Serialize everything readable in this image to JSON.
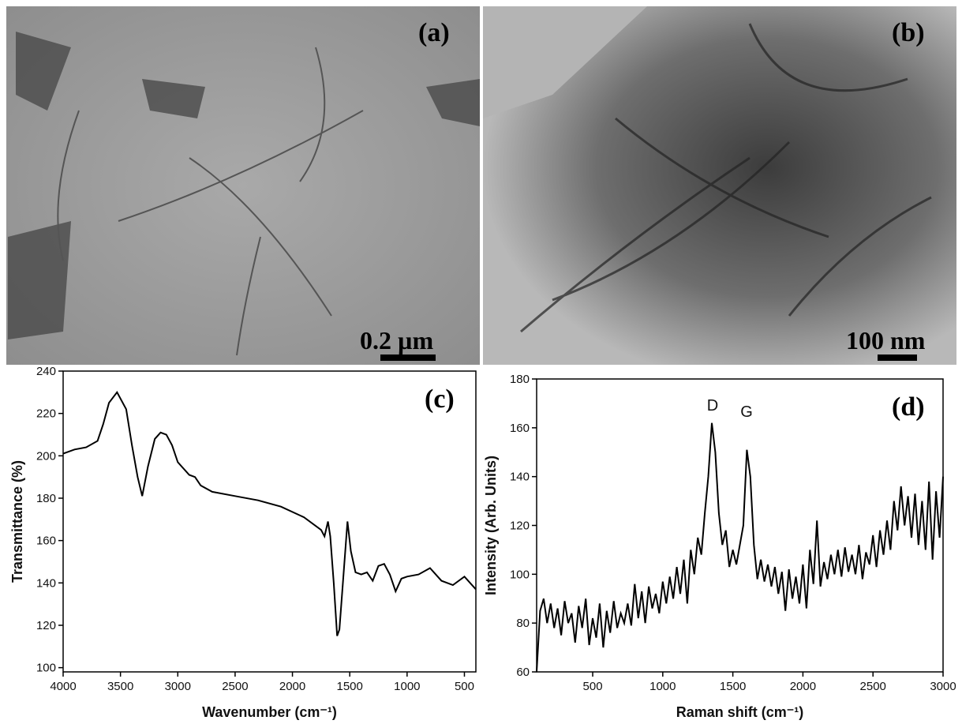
{
  "images": [
    {
      "label": "(a)",
      "scale_bar": "0.2 µm"
    },
    {
      "label": "(b)",
      "scale_bar": "100 nm"
    }
  ],
  "chart_data": [
    {
      "type": "line",
      "label": "(c)",
      "x_label": "Wavenumber (cm⁻¹)",
      "y_label": "Transmittance (%)",
      "color": "#000000",
      "x": [
        4000,
        3900,
        3800,
        3700,
        3650,
        3600,
        3530,
        3450,
        3400,
        3350,
        3310,
        3260,
        3200,
        3150,
        3100,
        3050,
        3000,
        2900,
        2850,
        2800,
        2700,
        2500,
        2300,
        2100,
        1900,
        1750,
        1720,
        1690,
        1670,
        1640,
        1610,
        1590,
        1560,
        1520,
        1490,
        1450,
        1400,
        1350,
        1300,
        1250,
        1200,
        1150,
        1100,
        1050,
        1000,
        900,
        800,
        700,
        600,
        500,
        400
      ],
      "values": [
        201,
        203,
        204,
        207,
        215,
        225,
        230,
        222,
        205,
        190,
        181,
        195,
        208,
        211,
        210,
        205,
        197,
        191,
        190,
        186,
        183,
        181,
        179,
        176,
        171,
        165,
        162,
        169,
        162,
        140,
        115,
        118,
        140,
        169,
        155,
        145,
        144,
        145,
        141,
        148,
        149,
        144,
        136,
        142,
        143,
        144,
        147,
        141,
        139,
        143,
        137
      ],
      "xlim": [
        4000,
        400
      ],
      "xticks": [
        4000,
        3500,
        3000,
        2500,
        2000,
        1500,
        1000,
        500
      ],
      "ylim": [
        98,
        240
      ],
      "yticks": [
        100,
        120,
        140,
        160,
        180,
        200,
        220,
        240
      ]
    },
    {
      "type": "line",
      "label": "(d)",
      "x_label": "Raman shift (cm⁻¹)",
      "y_label": "Intensity (Arb. Units)",
      "color": "#000000",
      "annotations": [
        "D",
        "G"
      ],
      "x": [
        100,
        125,
        150,
        175,
        200,
        225,
        250,
        275,
        300,
        325,
        350,
        375,
        400,
        425,
        450,
        475,
        500,
        525,
        550,
        575,
        600,
        625,
        650,
        675,
        700,
        725,
        750,
        775,
        800,
        825,
        850,
        875,
        900,
        925,
        950,
        975,
        1000,
        1025,
        1050,
        1075,
        1100,
        1125,
        1150,
        1175,
        1200,
        1225,
        1250,
        1275,
        1300,
        1325,
        1350,
        1375,
        1400,
        1425,
        1450,
        1475,
        1500,
        1525,
        1550,
        1575,
        1600,
        1625,
        1650,
        1675,
        1700,
        1725,
        1750,
        1775,
        1800,
        1825,
        1850,
        1875,
        1900,
        1925,
        1950,
        1975,
        2000,
        2025,
        2050,
        2075,
        2100,
        2125,
        2150,
        2175,
        2200,
        2225,
        2250,
        2275,
        2300,
        2325,
        2350,
        2375,
        2400,
        2425,
        2450,
        2475,
        2500,
        2525,
        2550,
        2575,
        2600,
        2625,
        2650,
        2675,
        2700,
        2725,
        2750,
        2775,
        2800,
        2825,
        2850,
        2875,
        2900,
        2925,
        2950,
        2975,
        3000
      ],
      "values": [
        60,
        85,
        90,
        80,
        88,
        78,
        86,
        75,
        89,
        80,
        84,
        72,
        87,
        78,
        90,
        71,
        82,
        74,
        88,
        70,
        85,
        76,
        89,
        78,
        84,
        80,
        88,
        79,
        96,
        82,
        93,
        80,
        95,
        86,
        92,
        84,
        97,
        88,
        99,
        90,
        103,
        92,
        106,
        88,
        110,
        100,
        115,
        108,
        125,
        140,
        162,
        150,
        125,
        112,
        118,
        103,
        110,
        104,
        112,
        120,
        151,
        140,
        112,
        98,
        106,
        97,
        104,
        95,
        103,
        92,
        101,
        85,
        102,
        90,
        99,
        88,
        104,
        86,
        110,
        96,
        122,
        95,
        105,
        98,
        108,
        100,
        110,
        99,
        111,
        101,
        108,
        100,
        112,
        98,
        109,
        104,
        116,
        103,
        118,
        108,
        122,
        110,
        130,
        118,
        136,
        120,
        132,
        115,
        133,
        112,
        130,
        110,
        138,
        106,
        134,
        115,
        140
      ],
      "xlim": [
        100,
        3000
      ],
      "xticks": [
        500,
        1000,
        1500,
        2000,
        2500,
        3000
      ],
      "ylim": [
        60,
        180
      ],
      "yticks": [
        60,
        80,
        100,
        120,
        140,
        160,
        180
      ]
    }
  ]
}
